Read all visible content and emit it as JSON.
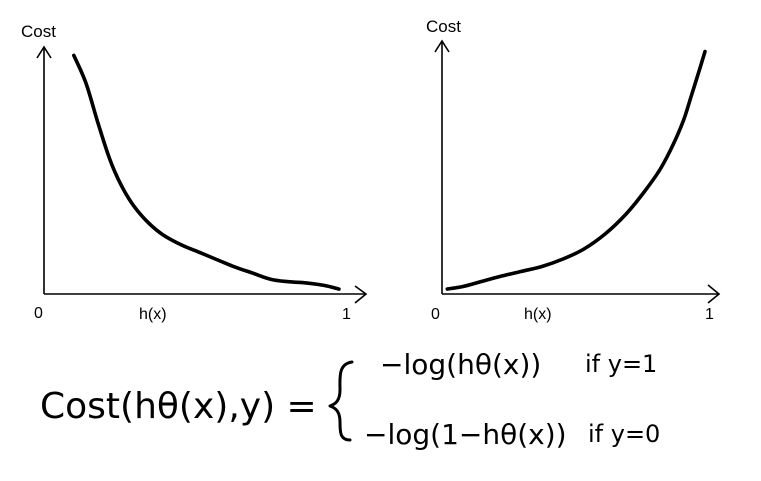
{
  "chart_data": [
    {
      "type": "line",
      "ylabel": "Cost",
      "xlabel": "h(x)",
      "x_tick_labels": [
        "0",
        "1"
      ],
      "xlim": [
        0,
        1
      ],
      "ylim": [
        0,
        1
      ],
      "grid": false,
      "series": [
        {
          "x": [
            0.1,
            0.14,
            0.18,
            0.22,
            0.26,
            0.3,
            0.35,
            0.4,
            0.46,
            0.52,
            0.58,
            0.64,
            0.7,
            0.76,
            0.82,
            0.88,
            0.94,
            0.99
          ],
          "y": [
            0.97,
            0.86,
            0.7,
            0.55,
            0.44,
            0.36,
            0.29,
            0.24,
            0.2,
            0.17,
            0.14,
            0.11,
            0.085,
            0.06,
            0.05,
            0.045,
            0.035,
            0.02
          ]
        }
      ]
    },
    {
      "type": "line",
      "ylabel": "Cost",
      "xlabel": "h(x)",
      "x_tick_labels": [
        "0",
        "1"
      ],
      "xlim": [
        0,
        1
      ],
      "ylim": [
        0,
        1
      ],
      "grid": false,
      "series": [
        {
          "x": [
            0.02,
            0.08,
            0.15,
            0.22,
            0.3,
            0.38,
            0.46,
            0.54,
            0.62,
            0.7,
            0.77,
            0.83,
            0.88,
            0.92,
            0.95,
            0.98,
            1.0
          ],
          "y": [
            0.02,
            0.03,
            0.05,
            0.07,
            0.09,
            0.11,
            0.14,
            0.18,
            0.24,
            0.32,
            0.41,
            0.5,
            0.6,
            0.7,
            0.8,
            0.9,
            0.97
          ]
        }
      ]
    }
  ],
  "formula": {
    "lhs": "Cost(hθ(x),y) =",
    "case1_expr": "−log(hθ(x))",
    "case1_cond": "if y=1",
    "case2_expr": "−log(1−hθ(x))",
    "case2_cond": "if y=0"
  }
}
